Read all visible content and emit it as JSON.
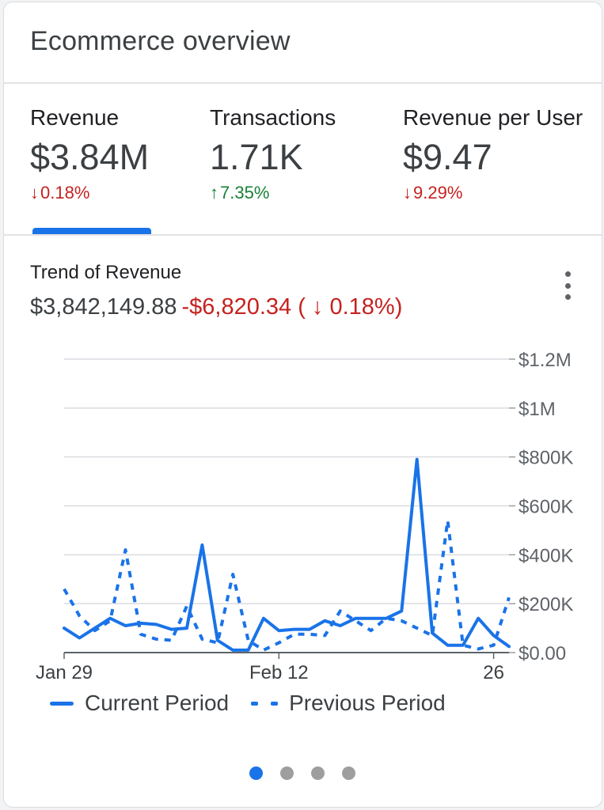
{
  "card": {
    "title": "Ecommerce overview"
  },
  "metrics": [
    {
      "label": "Revenue",
      "value": "$3.84M",
      "delta": "0.18%",
      "direction": "down",
      "arrow": "↓"
    },
    {
      "label": "Transactions",
      "value": "1.71K",
      "delta": "7.35%",
      "direction": "up",
      "arrow": "↑"
    },
    {
      "label": "Revenue per User",
      "value": "$9.47",
      "delta": "9.29%",
      "direction": "down",
      "arrow": "↓"
    }
  ],
  "selected_metric": "Revenue",
  "trend": {
    "title": "Trend of Revenue",
    "total": "$3,842,149.88",
    "change": "-$6,820.34 ( ↓ 0.18%)"
  },
  "colors": {
    "accent": "#1a73e8",
    "down": "#c5221f",
    "up": "#188038"
  },
  "icons": {
    "more_menu": "more-vert-icon",
    "down_arrow": "arrow-down-icon",
    "up_arrow": "arrow-up-icon"
  },
  "pager": {
    "count": 4,
    "active_index": 0
  },
  "chart_data": {
    "type": "line",
    "x": [
      "Jan 29",
      "Jan 30",
      "Jan 31",
      "Feb 1",
      "Feb 2",
      "Feb 3",
      "Feb 4",
      "Feb 5",
      "Feb 6",
      "Feb 7",
      "Feb 8",
      "Feb 9",
      "Feb 10",
      "Feb 11",
      "Feb 12",
      "Feb 13",
      "Feb 14",
      "Feb 15",
      "Feb 16",
      "Feb 17",
      "Feb 18",
      "Feb 19",
      "Feb 20",
      "Feb 21",
      "Feb 22",
      "Feb 23",
      "Feb 24",
      "Feb 25",
      "Feb 26",
      "Feb 27"
    ],
    "x_tick_labels": [
      {
        "x": "Jan 29",
        "label": "Jan 29"
      },
      {
        "x": "Feb 12",
        "label": "Feb 12"
      },
      {
        "x": "Feb 26",
        "label": "26"
      }
    ],
    "series": [
      {
        "name": "Current Period",
        "style": "solid",
        "values": [
          100000,
          60000,
          100000,
          140000,
          110000,
          120000,
          115000,
          95000,
          100000,
          440000,
          50000,
          10000,
          10000,
          140000,
          90000,
          95000,
          95000,
          130000,
          110000,
          140000,
          140000,
          140000,
          170000,
          790000,
          80000,
          30000,
          30000,
          140000,
          70000,
          25000
        ]
      },
      {
        "name": "Previous Period",
        "style": "dashed",
        "values": [
          260000,
          150000,
          90000,
          130000,
          420000,
          75000,
          55000,
          50000,
          190000,
          55000,
          40000,
          320000,
          50000,
          10000,
          40000,
          75000,
          75000,
          70000,
          170000,
          130000,
          90000,
          140000,
          130000,
          100000,
          70000,
          540000,
          30000,
          15000,
          30000,
          225000
        ]
      }
    ],
    "y_ticks": [
      "$0.00",
      "$200K",
      "$400K",
      "$600K",
      "$800K",
      "$1M",
      "$1.2M"
    ],
    "y_tick_values": [
      0,
      200000,
      400000,
      600000,
      800000,
      1000000,
      1200000
    ],
    "ylim": [
      0,
      1200000
    ],
    "grid": true,
    "legend_position": "bottom"
  }
}
